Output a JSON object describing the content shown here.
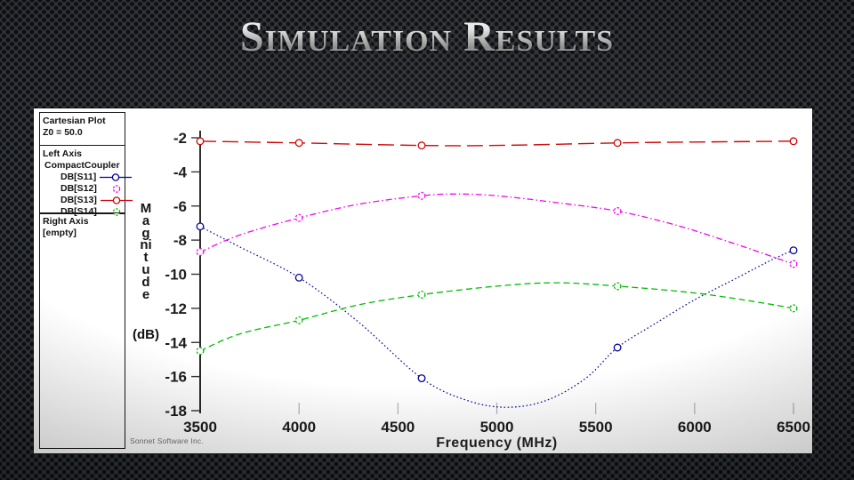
{
  "slide": {
    "title": "Simulation Results"
  },
  "legend_panel": {
    "section1": {
      "line1": "Cartesian Plot",
      "line2": "Z0 = 50.0"
    },
    "section2": {
      "heading": "Left Axis",
      "subheading": "CompactCoupler",
      "entries": [
        {
          "label": "DB[S11]",
          "swatch": "line-circle",
          "color": "#000099"
        },
        {
          "label": "DB[S12]",
          "swatch": "circle",
          "color": "#EE00EE"
        },
        {
          "label": "DB[S13]",
          "swatch": "line-circle",
          "color": "#CC0000"
        },
        {
          "label": "DB[S14]",
          "swatch": "circle",
          "color": "#00BB00"
        }
      ]
    },
    "section3": {
      "heading": "Right Axis",
      "line2": "[empty]"
    }
  },
  "watermark": "Sonnet Software Inc.",
  "chart_data": {
    "type": "line",
    "title": "Cartesian Plot (Z0 = 50.0)",
    "xlabel": "Frequency (MHz)",
    "ylabel": "Magnitude",
    "ylabel_unit": "(dB)",
    "xlim": [
      3500,
      6500
    ],
    "ylim": [
      -18,
      -2
    ],
    "x_ticks": [
      3500,
      4000,
      4500,
      5000,
      5500,
      6000,
      6500
    ],
    "y_ticks": [
      -2,
      -4,
      -6,
      -8,
      -10,
      -12,
      -14,
      -16,
      -18
    ],
    "grid": false,
    "legend_position": "left-panel",
    "series": [
      {
        "name": "DB[S11]",
        "color": "#000099",
        "dash": "1.6,2.6",
        "width": 1.2,
        "x": [
          3500,
          3700,
          4000,
          4300,
          4620,
          4850,
          5050,
          5250,
          5450,
          5610,
          5800,
          6000,
          6200,
          6400,
          6500
        ],
        "y": [
          -7.2,
          -8.4,
          -10.2,
          -12.8,
          -16.1,
          -17.4,
          -17.8,
          -17.4,
          -16.1,
          -14.3,
          -12.9,
          -11.5,
          -10.3,
          -9.1,
          -8.6
        ],
        "markers": [
          [
            3500,
            -7.2
          ],
          [
            4000,
            -10.2
          ],
          [
            4620,
            -16.1
          ],
          [
            5610,
            -14.3
          ],
          [
            6500,
            -8.6
          ]
        ]
      },
      {
        "name": "DB[S12]",
        "color": "#EE00EE",
        "dash": "7,3,1.5,3",
        "width": 1.3,
        "marker_dash": "2.5,1.8",
        "x": [
          3500,
          3700,
          4000,
          4300,
          4620,
          4800,
          5000,
          5300,
          5610,
          5900,
          6200,
          6400,
          6500
        ],
        "y": [
          -8.7,
          -7.7,
          -6.7,
          -5.9,
          -5.4,
          -5.3,
          -5.4,
          -5.8,
          -6.3,
          -7.1,
          -8.2,
          -9.0,
          -9.4
        ],
        "markers": [
          [
            3500,
            -8.7
          ],
          [
            4000,
            -6.7
          ],
          [
            4620,
            -5.4
          ],
          [
            5610,
            -6.3
          ],
          [
            6500,
            -9.4
          ]
        ]
      },
      {
        "name": "DB[S13]",
        "color": "#CC0000",
        "dash": "18,7",
        "width": 1.4,
        "x": [
          3500,
          4000,
          4620,
          5000,
          5610,
          6000,
          6500
        ],
        "y": [
          -2.2,
          -2.3,
          -2.45,
          -2.45,
          -2.3,
          -2.25,
          -2.2
        ],
        "markers": [
          [
            3500,
            -2.2
          ],
          [
            4000,
            -2.3
          ],
          [
            4620,
            -2.45
          ],
          [
            5610,
            -2.3
          ],
          [
            6500,
            -2.2
          ]
        ]
      },
      {
        "name": "DB[S14]",
        "color": "#00BB00",
        "dash": "7,4",
        "width": 1.3,
        "marker_dash": "2.5,1.8",
        "x": [
          3500,
          3700,
          4000,
          4300,
          4620,
          5000,
          5300,
          5610,
          6000,
          6300,
          6500
        ],
        "y": [
          -14.5,
          -13.5,
          -12.7,
          -11.8,
          -11.2,
          -10.7,
          -10.5,
          -10.7,
          -11.1,
          -11.6,
          -12.0
        ],
        "markers": [
          [
            3500,
            -14.5
          ],
          [
            4000,
            -12.7
          ],
          [
            4620,
            -11.2
          ],
          [
            5610,
            -10.7
          ],
          [
            6500,
            -12.0
          ]
        ]
      }
    ]
  }
}
